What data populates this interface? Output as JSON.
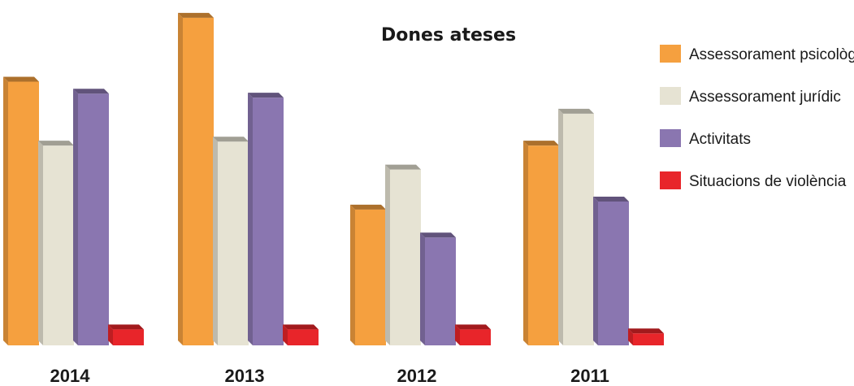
{
  "chart_data": {
    "type": "bar",
    "title": "Dones ateses",
    "categories": [
      "2014",
      "2013",
      "2012",
      "2011"
    ],
    "series": [
      {
        "name": "Assessorament psicològic",
        "values": [
          330,
          410,
          170,
          250
        ],
        "color": "#F5A03F"
      },
      {
        "name": "Assessorament jurídic",
        "values": [
          250,
          255,
          220,
          290
        ],
        "color": "#E6E3D3"
      },
      {
        "name": "Activitats",
        "values": [
          315,
          310,
          135,
          180
        ],
        "color": "#8A76B0"
      },
      {
        "name": "Situacions de violència",
        "values": [
          20,
          20,
          20,
          15
        ],
        "color": "#E8252A"
      }
    ],
    "ylim": [
      0,
      420
    ],
    "grid": false,
    "legend_position": "right"
  }
}
